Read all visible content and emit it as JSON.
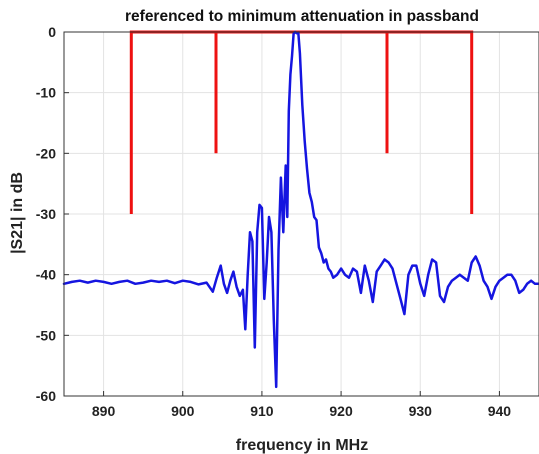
{
  "chart_data": {
    "type": "line",
    "title": "referenced to minimum attenuation in passband",
    "xlabel": "frequency in MHz",
    "ylabel": "|S21| in dB",
    "xlim": [
      885,
      945
    ],
    "ylim": [
      -60,
      0
    ],
    "xticks": [
      890,
      900,
      910,
      920,
      930,
      940
    ],
    "yticks": [
      0,
      -10,
      -20,
      -30,
      -40,
      -50,
      -60
    ],
    "grid": true,
    "mask": {
      "color": "#ee1111",
      "points": [
        [
          893.5,
          -30
        ],
        [
          893.5,
          0
        ],
        [
          904.2,
          0
        ],
        [
          904.2,
          -20
        ],
        [
          904.2,
          0
        ],
        [
          925.8,
          0
        ],
        [
          925.8,
          -20
        ],
        [
          925.8,
          0
        ],
        [
          936.5,
          0
        ],
        [
          936.5,
          -30
        ]
      ]
    },
    "series": [
      {
        "color": "#1515e0",
        "x": [
          885,
          886,
          887,
          888,
          889,
          890,
          891,
          892,
          893,
          894,
          895,
          896,
          897,
          898,
          899,
          900,
          901,
          902,
          903,
          903.8,
          904.3,
          904.8,
          905.2,
          905.6,
          906,
          906.4,
          906.8,
          907.2,
          907.6,
          907.9,
          908.2,
          908.5,
          908.8,
          909.1,
          909.4,
          909.7,
          910,
          910.3,
          910.6,
          910.9,
          911.2,
          911.5,
          911.8,
          912.1,
          912.4,
          912.7,
          913.0,
          913.2,
          913.4,
          913.6,
          913.8,
          914.0,
          914.2,
          914.4,
          914.6,
          914.8,
          915.1,
          915.4,
          915.7,
          916.0,
          916.3,
          916.6,
          916.9,
          917.2,
          917.5,
          917.8,
          918.1,
          918.4,
          918.7,
          919.0,
          919.5,
          920,
          920.5,
          921,
          921.5,
          922,
          922.5,
          923,
          923.5,
          924,
          924.5,
          925,
          925.5,
          926,
          926.5,
          927,
          927.5,
          928,
          928.5,
          929,
          929.5,
          930,
          930.5,
          931,
          931.5,
          932,
          932.5,
          933,
          933.5,
          934,
          934.5,
          935,
          935.5,
          936,
          936.5,
          937,
          937.5,
          938,
          938.5,
          939,
          939.5,
          940,
          940.5,
          941,
          941.5,
          942,
          942.5,
          943,
          943.5,
          944,
          944.5,
          945
        ],
        "y": [
          -41.5,
          -41.2,
          -41.0,
          -41.3,
          -41.0,
          -41.2,
          -41.5,
          -41.2,
          -41.0,
          -41.5,
          -41.3,
          -41.0,
          -41.2,
          -41.0,
          -41.4,
          -41.0,
          -41.2,
          -41.6,
          -41.3,
          -42.8,
          -40.5,
          -38.5,
          -41.5,
          -43.0,
          -41.0,
          -39.5,
          -42.0,
          -43.5,
          -42.5,
          -49.0,
          -40.0,
          -33.0,
          -34.5,
          -52.0,
          -33.0,
          -28.5,
          -29.0,
          -44.0,
          -38.0,
          -30.5,
          -33.0,
          -47.5,
          -58.5,
          -36.0,
          -24.0,
          -33.0,
          -22.0,
          -30.5,
          -13.0,
          -7.0,
          -4.0,
          -0.3,
          0.0,
          -0.2,
          -0.1,
          -3.5,
          -12.0,
          -18.0,
          -22.5,
          -26.5,
          -28.0,
          -30.5,
          -31.0,
          -35.5,
          -36.5,
          -38.0,
          -37.5,
          -39.0,
          -39.5,
          -40.5,
          -40.0,
          -39.0,
          -40.0,
          -40.5,
          -39.0,
          -39.5,
          -43.0,
          -38.5,
          -41.0,
          -44.5,
          -39.5,
          -38.5,
          -37.5,
          -38.0,
          -39.0,
          -41.5,
          -44.0,
          -46.5,
          -40.0,
          -38.5,
          -38.5,
          -41.5,
          -43.5,
          -40.0,
          -37.5,
          -38.0,
          -43.5,
          -44.5,
          -42.0,
          -41.0,
          -40.5,
          -40.0,
          -40.5,
          -41.0,
          -38.0,
          -37.0,
          -38.5,
          -41.0,
          -42.0,
          -44.0,
          -42.0,
          -41.0,
          -40.5,
          -40.0,
          -40.0,
          -41.0,
          -43.0,
          -42.5,
          -41.5,
          -41.0,
          -41.5,
          -41.5
        ]
      }
    ]
  }
}
